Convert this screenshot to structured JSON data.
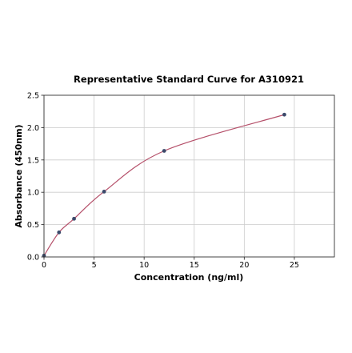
{
  "chart_data": {
    "type": "scatter",
    "title": "Representative Standard Curve for A310921",
    "xlabel": "Concentration (ng/ml)",
    "ylabel": "Absorbance (450nm)",
    "xlim": [
      0,
      29
    ],
    "ylim": [
      0,
      2.5
    ],
    "xticks": [
      0,
      5,
      10,
      15,
      20,
      25
    ],
    "yticks": [
      0.0,
      0.5,
      1.0,
      1.5,
      2.0,
      2.5
    ],
    "xtick_labels": [
      "0",
      "5",
      "10",
      "15",
      "20",
      "25"
    ],
    "ytick_labels": [
      "0.0",
      "0.5",
      "1.0",
      "1.5",
      "2.0",
      "2.5"
    ],
    "grid": true,
    "series": [
      {
        "x": [
          0,
          1.5,
          3,
          6,
          12,
          24
        ],
        "y": [
          0.02,
          0.38,
          0.59,
          1.01,
          1.64,
          2.2
        ],
        "marker_color": "#3b4a6b",
        "curve_color": "#b5506a"
      }
    ]
  }
}
